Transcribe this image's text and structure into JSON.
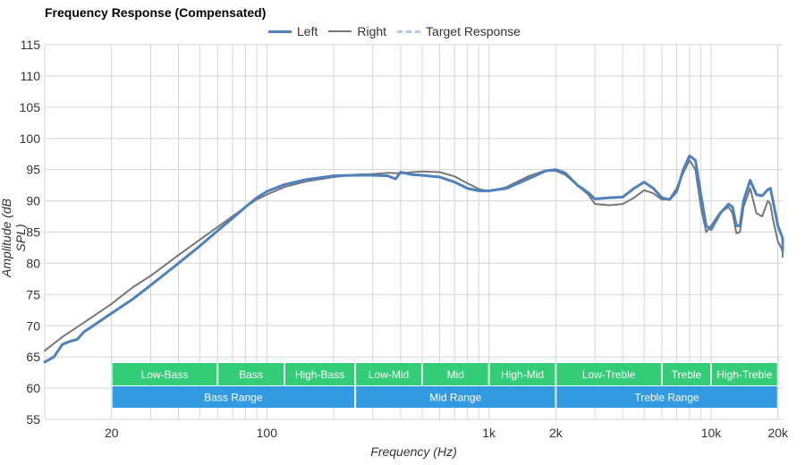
{
  "chart_data": {
    "type": "line",
    "title": "Frequency Response (Compensated)",
    "xlabel": "Frequency (Hz)",
    "ylabel": "Amplitude (dB SPL)",
    "x_scale": "log",
    "xlim": [
      10,
      21000
    ],
    "ylim": [
      55,
      115
    ],
    "y_ticks": [
      55,
      60,
      65,
      70,
      75,
      80,
      85,
      90,
      95,
      100,
      105,
      110,
      115
    ],
    "x_ticks": [
      {
        "value": 20,
        "label": "20"
      },
      {
        "value": 100,
        "label": "100"
      },
      {
        "value": 1000,
        "label": "1k"
      },
      {
        "value": 2000,
        "label": "2k"
      },
      {
        "value": 10000,
        "label": "10k"
      },
      {
        "value": 20000,
        "label": "20k"
      }
    ],
    "legend_position": "top-center",
    "grid": true,
    "series": [
      {
        "name": "Left",
        "color": "#4f81bd",
        "points": [
          [
            10,
            64.2
          ],
          [
            11,
            65
          ],
          [
            12,
            67
          ],
          [
            13,
            67.5
          ],
          [
            14,
            67.8
          ],
          [
            15,
            69
          ],
          [
            17,
            70.3
          ],
          [
            20,
            72
          ],
          [
            25,
            74.3
          ],
          [
            30,
            76.5
          ],
          [
            40,
            80
          ],
          [
            50,
            82.8
          ],
          [
            60,
            85.2
          ],
          [
            70,
            87.2
          ],
          [
            80,
            89
          ],
          [
            90,
            90.5
          ],
          [
            100,
            91.5
          ],
          [
            120,
            92.6
          ],
          [
            150,
            93.4
          ],
          [
            200,
            94
          ],
          [
            250,
            94.1
          ],
          [
            300,
            94.1
          ],
          [
            350,
            94.0
          ],
          [
            380,
            93.5
          ],
          [
            400,
            94.6
          ],
          [
            450,
            94.2
          ],
          [
            500,
            94.1
          ],
          [
            600,
            93.8
          ],
          [
            700,
            93.0
          ],
          [
            800,
            92.0
          ],
          [
            900,
            91.6
          ],
          [
            1000,
            91.6
          ],
          [
            1200,
            92.0
          ],
          [
            1500,
            93.5
          ],
          [
            1800,
            94.8
          ],
          [
            2000,
            95.0
          ],
          [
            2200,
            94.5
          ],
          [
            2500,
            92.5
          ],
          [
            2800,
            91.3
          ],
          [
            3000,
            90.3
          ],
          [
            3500,
            90.5
          ],
          [
            4000,
            90.6
          ],
          [
            4500,
            92
          ],
          [
            5000,
            93
          ],
          [
            5500,
            92
          ],
          [
            6000,
            90.5
          ],
          [
            6500,
            90.2
          ],
          [
            7000,
            91.5
          ],
          [
            7500,
            95
          ],
          [
            8000,
            97.2
          ],
          [
            8500,
            96.5
          ],
          [
            9000,
            91
          ],
          [
            9500,
            86
          ],
          [
            10000,
            85.4
          ],
          [
            11000,
            88
          ],
          [
            12000,
            89.5
          ],
          [
            12500,
            89
          ],
          [
            13000,
            86
          ],
          [
            13500,
            86
          ],
          [
            14000,
            90
          ],
          [
            15000,
            93.3
          ],
          [
            16000,
            91
          ],
          [
            17000,
            90.8
          ],
          [
            18000,
            91.8
          ],
          [
            18500,
            92
          ],
          [
            19000,
            90
          ],
          [
            20000,
            86
          ],
          [
            21000,
            84
          ],
          [
            22000,
            82
          ],
          [
            23000,
            83.5
          ]
        ]
      },
      {
        "name": "Right",
        "color": "#777777",
        "points": [
          [
            10,
            66
          ],
          [
            12,
            68.2
          ],
          [
            15,
            70.5
          ],
          [
            20,
            73.5
          ],
          [
            25,
            76.2
          ],
          [
            30,
            78
          ],
          [
            40,
            81.3
          ],
          [
            50,
            83.8
          ],
          [
            60,
            85.8
          ],
          [
            70,
            87.5
          ],
          [
            80,
            89
          ],
          [
            90,
            90.2
          ],
          [
            100,
            91
          ],
          [
            120,
            92.2
          ],
          [
            150,
            93.1
          ],
          [
            200,
            93.8
          ],
          [
            250,
            94.2
          ],
          [
            300,
            94.3
          ],
          [
            350,
            94.5
          ],
          [
            400,
            94.4
          ],
          [
            450,
            94.6
          ],
          [
            500,
            94.7
          ],
          [
            600,
            94.6
          ],
          [
            700,
            93.9
          ],
          [
            800,
            92.8
          ],
          [
            900,
            91.9
          ],
          [
            1000,
            91.5
          ],
          [
            1200,
            92.2
          ],
          [
            1500,
            93.9
          ],
          [
            1800,
            94.9
          ],
          [
            2000,
            94.8
          ],
          [
            2200,
            94.2
          ],
          [
            2500,
            92.5
          ],
          [
            2800,
            91
          ],
          [
            3000,
            89.5
          ],
          [
            3500,
            89.3
          ],
          [
            4000,
            89.5
          ],
          [
            4500,
            90.5
          ],
          [
            5000,
            91.7
          ],
          [
            5500,
            91.2
          ],
          [
            6000,
            90.2
          ],
          [
            6500,
            90.3
          ],
          [
            7000,
            92
          ],
          [
            7500,
            94.5
          ],
          [
            8000,
            96.5
          ],
          [
            8500,
            95
          ],
          [
            9000,
            89
          ],
          [
            9500,
            85
          ],
          [
            10000,
            86
          ],
          [
            11000,
            88.2
          ],
          [
            12000,
            89
          ],
          [
            12500,
            88
          ],
          [
            13000,
            84.8
          ],
          [
            13500,
            85
          ],
          [
            14000,
            89
          ],
          [
            15000,
            92
          ],
          [
            16000,
            88
          ],
          [
            17000,
            87.5
          ],
          [
            18000,
            90
          ],
          [
            18500,
            89.5
          ],
          [
            19000,
            87
          ],
          [
            20000,
            83.5
          ],
          [
            21000,
            82
          ],
          [
            22000,
            81
          ],
          [
            23000,
            80.8
          ]
        ]
      },
      {
        "name": "Target Response",
        "color": "#aec7f7",
        "dashed": true,
        "points": [
          [
            10,
            90
          ],
          [
            23000,
            90
          ]
        ]
      }
    ]
  },
  "bands": {
    "upper": [
      {
        "label": "Low-Bass",
        "from": 20,
        "to": 60
      },
      {
        "label": "Bass",
        "from": 60,
        "to": 120
      },
      {
        "label": "High-Bass",
        "from": 120,
        "to": 250
      },
      {
        "label": "Low-Mid",
        "from": 250,
        "to": 500
      },
      {
        "label": "Mid",
        "from": 500,
        "to": 1000
      },
      {
        "label": "High-Mid",
        "from": 1000,
        "to": 2000
      },
      {
        "label": "Low-Treble",
        "from": 2000,
        "to": 6000
      },
      {
        "label": "Treble",
        "from": 6000,
        "to": 10000
      },
      {
        "label": "High-Treble",
        "from": 10000,
        "to": 20000
      }
    ],
    "lower": [
      {
        "label": "Bass Range",
        "from": 20,
        "to": 250
      },
      {
        "label": "Mid Range",
        "from": 250,
        "to": 2000
      },
      {
        "label": "Treble Range",
        "from": 2000,
        "to": 20000
      }
    ],
    "upper_color": "#33cc77",
    "lower_color": "#3399e0"
  }
}
